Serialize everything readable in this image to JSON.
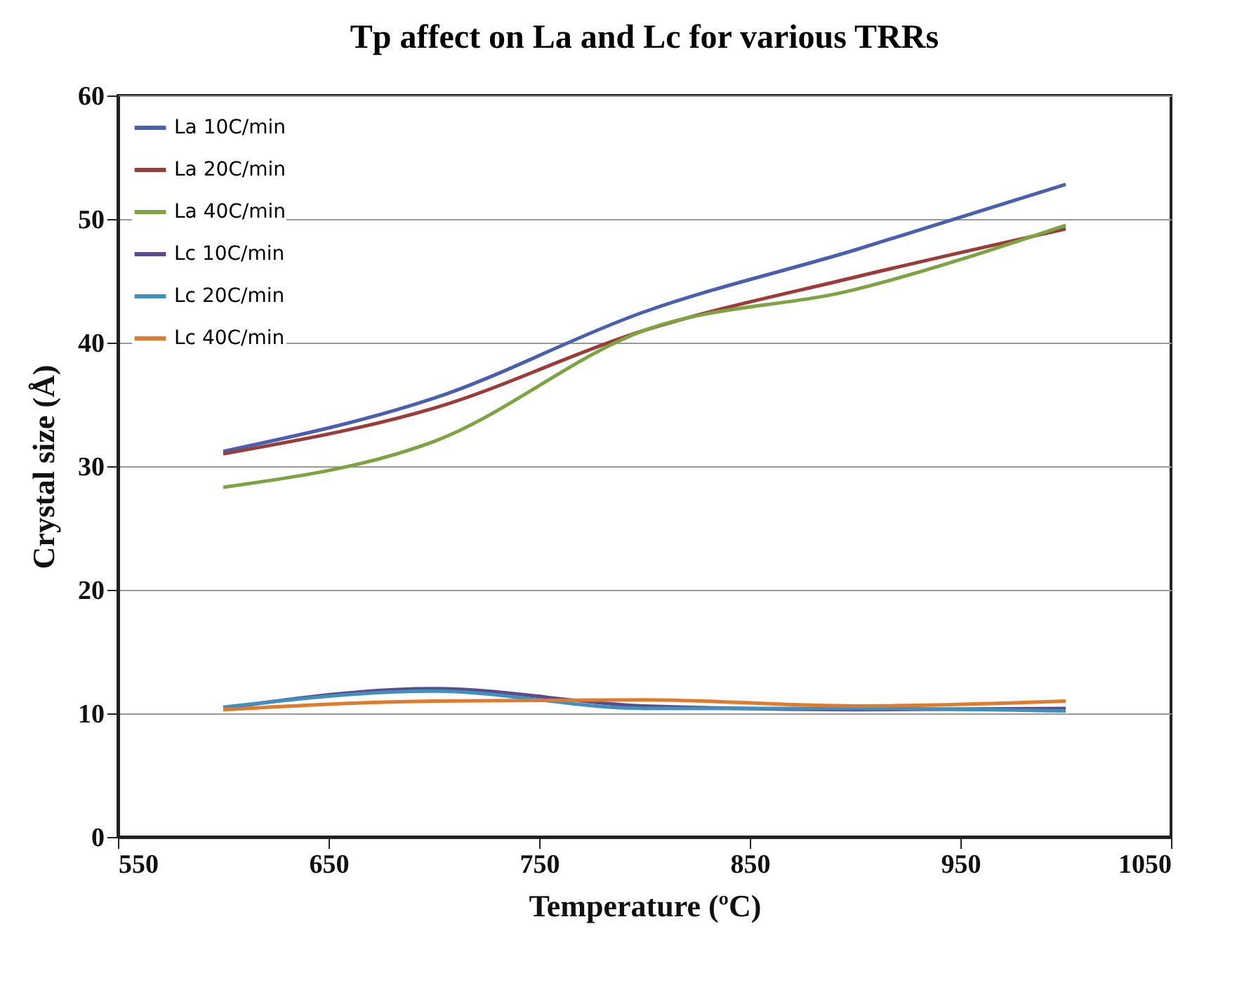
{
  "chart_data": {
    "type": "line",
    "title": "Tp affect on La and Lc for various TRRs",
    "xlabel": "Temperature (ºC)",
    "ylabel": "Crystal size (Å)",
    "x": [
      600,
      700,
      800,
      900,
      1000
    ],
    "xlim": [
      550,
      1050
    ],
    "xticks": [
      550,
      650,
      750,
      850,
      950,
      1050
    ],
    "ylim": [
      0,
      60
    ],
    "yticks": [
      0,
      10,
      20,
      30,
      40,
      50,
      60
    ],
    "grid": "y",
    "legend": "top left",
    "marker": "none",
    "line_style": "solid",
    "series": [
      {
        "name": "La 10C/min",
        "color": "#4a5fae",
        "values": [
          31.2,
          35.5,
          42.5,
          47.5,
          52.8
        ]
      },
      {
        "name": "La 20C/min",
        "color": "#9b3c3a",
        "values": [
          31.0,
          34.7,
          41.0,
          45.3,
          49.2
        ]
      },
      {
        "name": "La 40C/min",
        "color": "#7ea342",
        "values": [
          28.3,
          32.0,
          41.0,
          44.3,
          49.5
        ]
      },
      {
        "name": "Lc 10C/min",
        "color": "#5d4a8a",
        "values": [
          10.4,
          12.0,
          10.6,
          10.3,
          10.4
        ]
      },
      {
        "name": "Lc 20C/min",
        "color": "#3f8fbf",
        "values": [
          10.5,
          11.8,
          10.4,
          10.4,
          10.2
        ]
      },
      {
        "name": "Lc 40C/min",
        "color": "#e07a2c",
        "values": [
          10.3,
          11.0,
          11.1,
          10.6,
          11.0
        ]
      }
    ]
  }
}
